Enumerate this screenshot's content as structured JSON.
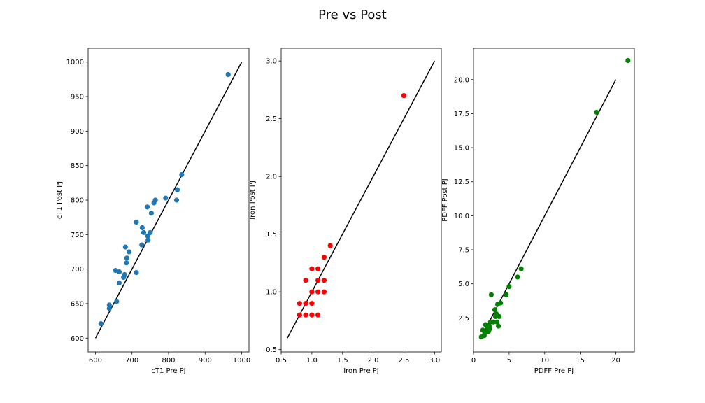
{
  "figure": {
    "title": "Pre vs Post"
  },
  "chart_data": [
    {
      "type": "scatter",
      "xlabel": "cT1 Pre PJ",
      "ylabel": "cT1 Post PJ",
      "xlim": [
        580,
        1020
      ],
      "ylim": [
        580,
        1020
      ],
      "xticks": [
        600,
        700,
        800,
        900,
        1000
      ],
      "yticks": [
        600,
        650,
        700,
        750,
        800,
        850,
        900,
        950,
        1000
      ],
      "xtick_labels": [
        "600",
        "700",
        "800",
        "900",
        "1000"
      ],
      "ytick_labels": [
        "600",
        "650",
        "700",
        "750",
        "800",
        "850",
        "900",
        "950",
        "1000"
      ],
      "marker_color": "#1f77b4",
      "identity_line": {
        "from": [
          600,
          600
        ],
        "to": [
          1000,
          1000
        ],
        "color": "#000000"
      },
      "grid": false,
      "points": [
        [
          615,
          621
        ],
        [
          638,
          648
        ],
        [
          638,
          643
        ],
        [
          655,
          698
        ],
        [
          658,
          653
        ],
        [
          665,
          696
        ],
        [
          665,
          680
        ],
        [
          677,
          688
        ],
        [
          680,
          692
        ],
        [
          682,
          732
        ],
        [
          685,
          709
        ],
        [
          686,
          716
        ],
        [
          692,
          725
        ],
        [
          712,
          768
        ],
        [
          712,
          695
        ],
        [
          727,
          735
        ],
        [
          728,
          760
        ],
        [
          732,
          753
        ],
        [
          742,
          790
        ],
        [
          743,
          748
        ],
        [
          744,
          742
        ],
        [
          750,
          753
        ],
        [
          753,
          781
        ],
        [
          760,
          796
        ],
        [
          764,
          800
        ],
        [
          792,
          803
        ],
        [
          822,
          800
        ],
        [
          824,
          815
        ],
        [
          836,
          837
        ],
        [
          963,
          982
        ]
      ]
    },
    {
      "type": "scatter",
      "xlabel": "Iron Pre PJ",
      "ylabel": "Iron Post PJ",
      "xlim": [
        0.5,
        3.11
      ],
      "ylim": [
        0.48,
        3.11
      ],
      "xticks": [
        0.5,
        1.0,
        1.5,
        2.0,
        2.5,
        3.0
      ],
      "yticks": [
        0.5,
        1.0,
        1.5,
        2.0,
        2.5,
        3.0
      ],
      "xtick_labels": [
        "0.5",
        "1.0",
        "1.5",
        "2.0",
        "2.5",
        "3.0"
      ],
      "ytick_labels": [
        "0.5",
        "1.0",
        "1.5",
        "2.0",
        "2.5",
        "3.0"
      ],
      "marker_color": "#ff0000",
      "identity_line": {
        "from": [
          0.6,
          0.6
        ],
        "to": [
          3.0,
          3.0
        ],
        "color": "#000000"
      },
      "grid": false,
      "points": [
        [
          0.8,
          0.8
        ],
        [
          0.8,
          0.9
        ],
        [
          0.9,
          0.8
        ],
        [
          0.9,
          0.9
        ],
        [
          0.9,
          1.1
        ],
        [
          1.0,
          0.8
        ],
        [
          1.0,
          0.9
        ],
        [
          1.0,
          1.0
        ],
        [
          1.0,
          1.2
        ],
        [
          1.1,
          0.8
        ],
        [
          1.1,
          1.0
        ],
        [
          1.1,
          1.1
        ],
        [
          1.1,
          1.2
        ],
        [
          1.2,
          1.0
        ],
        [
          1.2,
          1.1
        ],
        [
          1.2,
          1.3
        ],
        [
          1.3,
          1.4
        ],
        [
          2.5,
          2.7
        ]
      ]
    },
    {
      "type": "scatter",
      "xlabel": "PDFF Pre PJ",
      "ylabel": "PDFF Post PJ",
      "xlim": [
        0,
        22.6
      ],
      "ylim": [
        0,
        22.3
      ],
      "xticks": [
        0,
        5,
        10,
        15,
        20
      ],
      "yticks": [
        2.5,
        5.0,
        7.5,
        10.0,
        12.5,
        15.0,
        17.5,
        20.0
      ],
      "xtick_labels": [
        "0",
        "5",
        "10",
        "15",
        "20"
      ],
      "ytick_labels": [
        "2.5",
        "5.0",
        "7.5",
        "10.0",
        "12.5",
        "15.0",
        "17.5",
        "20.0"
      ],
      "marker_color": "#008000",
      "identity_line": {
        "from": [
          1.0,
          1.0
        ],
        "to": [
          20.0,
          20.0
        ],
        "color": "#000000"
      },
      "grid": false,
      "points": [
        [
          1.1,
          1.1
        ],
        [
          1.3,
          1.6
        ],
        [
          1.5,
          1.2
        ],
        [
          1.6,
          1.4
        ],
        [
          1.7,
          2.0
        ],
        [
          1.9,
          1.8
        ],
        [
          2.0,
          1.6
        ],
        [
          2.1,
          1.5
        ],
        [
          2.2,
          1.9
        ],
        [
          2.3,
          1.7
        ],
        [
          2.4,
          2.2
        ],
        [
          2.5,
          4.2
        ],
        [
          2.8,
          2.2
        ],
        [
          3.0,
          3.1
        ],
        [
          3.1,
          2.6
        ],
        [
          3.2,
          2.8
        ],
        [
          3.3,
          2.2
        ],
        [
          3.4,
          3.5
        ],
        [
          3.5,
          1.9
        ],
        [
          3.6,
          2.6
        ],
        [
          3.8,
          3.6
        ],
        [
          4.6,
          4.2
        ],
        [
          5.0,
          4.8
        ],
        [
          6.2,
          5.5
        ],
        [
          6.7,
          6.1
        ],
        [
          17.3,
          17.6
        ],
        [
          21.7,
          21.4
        ]
      ]
    }
  ]
}
